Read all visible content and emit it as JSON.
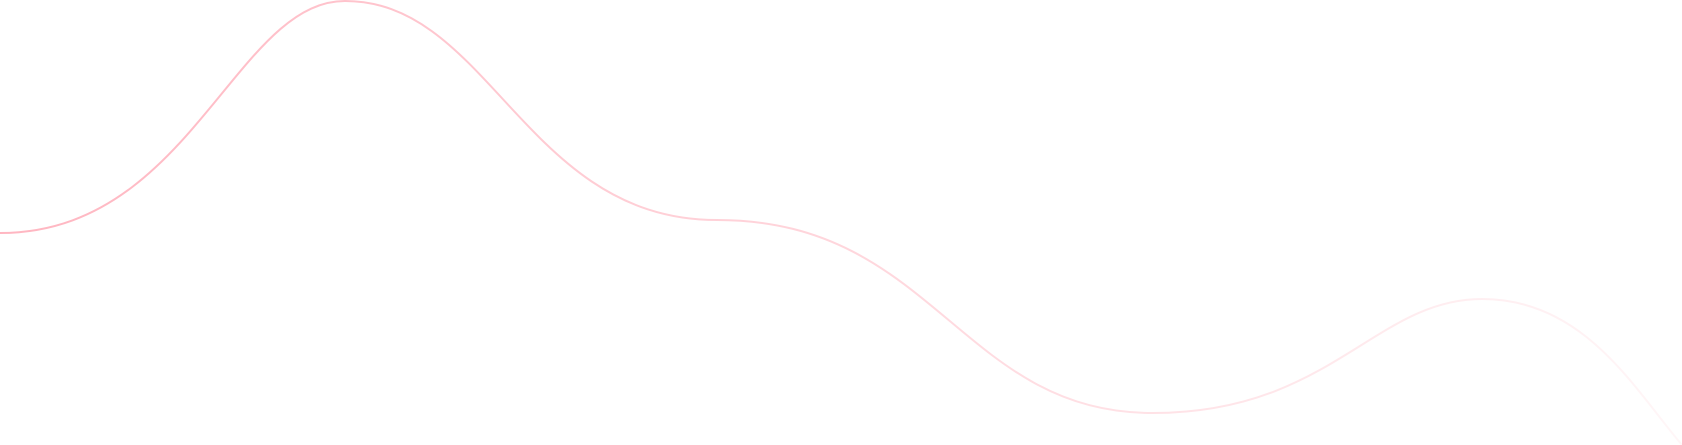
{
  "decoration": {
    "background_color": "#ffffff",
    "wave_color": "#ffb6c1",
    "wave_opacity_start": 1,
    "wave_opacity_end": 0.12
  }
}
